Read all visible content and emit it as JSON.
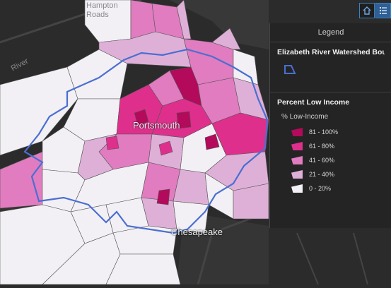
{
  "map": {
    "place_labels": {
      "hampton_roads": "Hampton\nRoads",
      "river": "River",
      "portsmouth": "Portsmouth",
      "chesapeake": "Chesapeake"
    },
    "colors": {
      "water": "#2b2b2b",
      "land": "#3a3a3a",
      "boundary": "#4a6fd1",
      "class_81_100": "#b30a5c",
      "class_61_80": "#df2f8c",
      "class_41_60": "#e07cbf",
      "class_21_40": "#deb0d8",
      "class_0_20": "#f2f0f5"
    }
  },
  "toolbar": {
    "home_icon": "home-icon",
    "legend_icon": "legend-list-icon"
  },
  "legend": {
    "header": "Legend",
    "watershed_title": "Elizabeth River Watershed Boundary",
    "income_title": "Percent Low Income",
    "income_subtitle": "% Low-Income",
    "classes": [
      {
        "label": "81 - 100%",
        "color": "#b30a5c"
      },
      {
        "label": "61 - 80%",
        "color": "#df2f8c"
      },
      {
        "label": "41 - 60%",
        "color": "#e07cbf"
      },
      {
        "label": "21 - 40%",
        "color": "#deb0d8"
      },
      {
        "label": "0 - 20%",
        "color": "#f2f0f5"
      }
    ]
  }
}
